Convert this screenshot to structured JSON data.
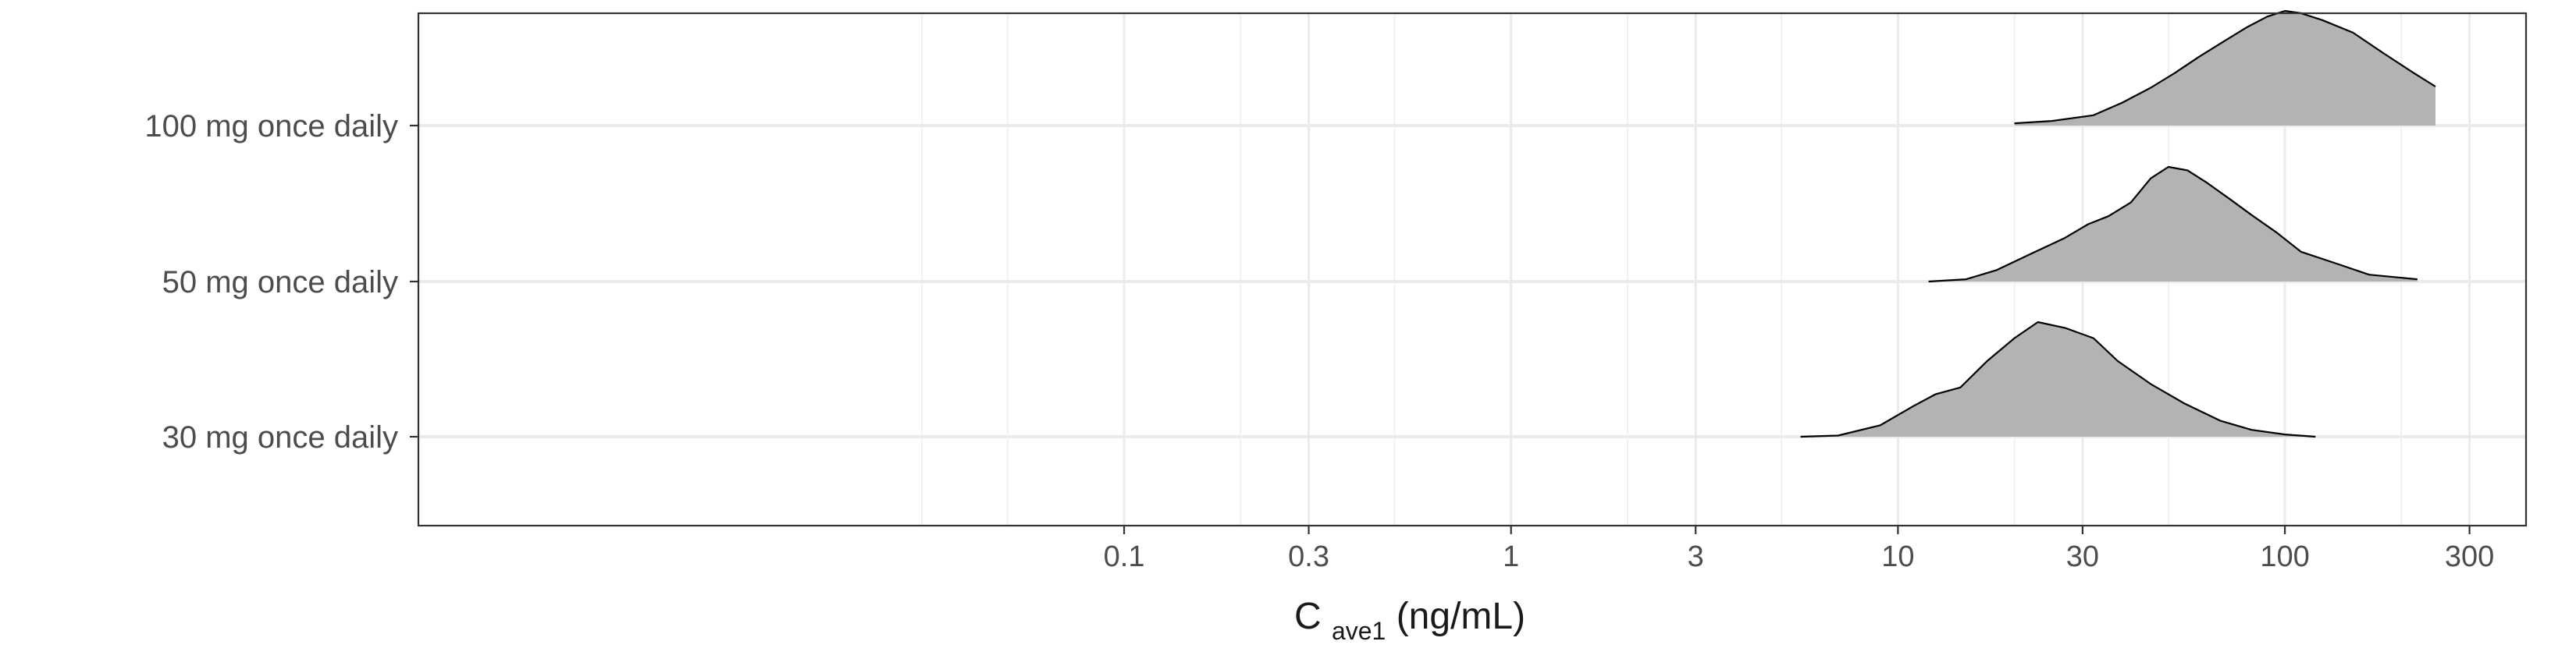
{
  "chart_data": {
    "type": "ridgeline",
    "title": "",
    "xlabel": {
      "main": "C",
      "subscript": "ave1",
      "unit": " (ng/mL)"
    },
    "ylabel": "",
    "x_scale": "log10",
    "xlim": [
      0.0015,
      420
    ],
    "x_ticks": [
      0.1,
      0.3,
      1,
      3,
      10,
      30,
      100,
      300
    ],
    "x_tick_labels": [
      "0.1",
      "0.3",
      "1",
      "3",
      "10",
      "30",
      "100",
      "300"
    ],
    "x_minor_gridlines": [
      0.03,
      0.05,
      0.2,
      0.5,
      2,
      5,
      20,
      50,
      200
    ],
    "grid": true,
    "fill_color": "#b3b3b3",
    "series": [
      {
        "name": "100 mg once daily",
        "density": [
          [
            20,
            0.02
          ],
          [
            25,
            0.04
          ],
          [
            32,
            0.09
          ],
          [
            38,
            0.2
          ],
          [
            45,
            0.33
          ],
          [
            52,
            0.46
          ],
          [
            60,
            0.6
          ],
          [
            70,
            0.74
          ],
          [
            80,
            0.86
          ],
          [
            90,
            0.95
          ],
          [
            100,
            1.0
          ],
          [
            110,
            0.98
          ],
          [
            125,
            0.92
          ],
          [
            150,
            0.81
          ],
          [
            180,
            0.63
          ],
          [
            215,
            0.46
          ],
          [
            245,
            0.34
          ]
        ]
      },
      {
        "name": "50 mg once daily",
        "density": [
          [
            12,
            0.0
          ],
          [
            15,
            0.02
          ],
          [
            18,
            0.1
          ],
          [
            22,
            0.24
          ],
          [
            27,
            0.38
          ],
          [
            31,
            0.5
          ],
          [
            35,
            0.57
          ],
          [
            40,
            0.69
          ],
          [
            45,
            0.9
          ],
          [
            50,
            1.0
          ],
          [
            56,
            0.97
          ],
          [
            63,
            0.86
          ],
          [
            72,
            0.72
          ],
          [
            82,
            0.58
          ],
          [
            95,
            0.43
          ],
          [
            110,
            0.26
          ],
          [
            135,
            0.16
          ],
          [
            165,
            0.06
          ],
          [
            220,
            0.02
          ]
        ]
      },
      {
        "name": "30 mg once daily",
        "density": [
          [
            5.6,
            0.0
          ],
          [
            7,
            0.01
          ],
          [
            9,
            0.1
          ],
          [
            11,
            0.27
          ],
          [
            12.5,
            0.37
          ],
          [
            14.5,
            0.43
          ],
          [
            17,
            0.66
          ],
          [
            20,
            0.86
          ],
          [
            23,
            1.0
          ],
          [
            27,
            0.95
          ],
          [
            32,
            0.86
          ],
          [
            37,
            0.66
          ],
          [
            45,
            0.46
          ],
          [
            55,
            0.29
          ],
          [
            68,
            0.14
          ],
          [
            82,
            0.06
          ],
          [
            100,
            0.02
          ],
          [
            120,
            0.0
          ]
        ]
      }
    ]
  }
}
